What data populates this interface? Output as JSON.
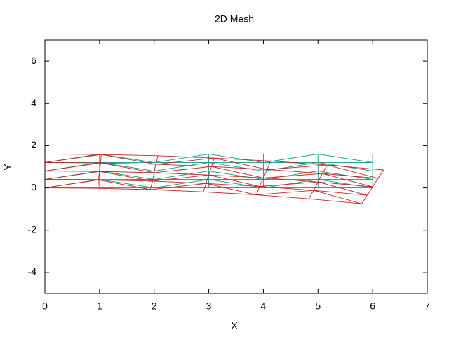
{
  "chart_data": {
    "type": "line",
    "title": "2D Mesh",
    "xlabel": "X",
    "ylabel": "Y",
    "xlim": [
      0,
      7
    ],
    "ylim": [
      -5,
      7
    ],
    "xticks": [
      0,
      1,
      2,
      3,
      4,
      5,
      6,
      7
    ],
    "yticks": [
      -4,
      -2,
      0,
      2,
      4,
      6
    ],
    "series": [
      {
        "color": "#009e88",
        "x": [
          0,
          1,
          2,
          3,
          4,
          5,
          6,
          null,
          0,
          1,
          2,
          3,
          4,
          5,
          6,
          null,
          0,
          1,
          2,
          3,
          4,
          5,
          6,
          null,
          0,
          1,
          2,
          3,
          4,
          5,
          6,
          null,
          0,
          1,
          2,
          3,
          4,
          5,
          6,
          null,
          0,
          0,
          0,
          0,
          0,
          null,
          1,
          1,
          1,
          1,
          1,
          null,
          2,
          2,
          2,
          2,
          2,
          null,
          3,
          3,
          3,
          3,
          3,
          null,
          4,
          4,
          4,
          4,
          4,
          null,
          5,
          5,
          5,
          5,
          5,
          null,
          6,
          6,
          6,
          6,
          6,
          null,
          0,
          1,
          2,
          3,
          4,
          5,
          6,
          null,
          0,
          1,
          2,
          3,
          4,
          5,
          6,
          null,
          0,
          1,
          2,
          3,
          4,
          5,
          6,
          null,
          0,
          1,
          2,
          3,
          4,
          5,
          6
        ],
        "y": [
          0,
          0,
          0,
          0,
          0,
          0,
          0,
          null,
          0.4,
          0.4,
          0.4,
          0.4,
          0.4,
          0.4,
          0.4,
          null,
          0.8,
          0.8,
          0.8,
          0.8,
          0.8,
          0.8,
          0.8,
          null,
          1.2,
          1.2,
          1.2,
          1.2,
          1.2,
          1.2,
          1.2,
          null,
          1.6,
          1.6,
          1.6,
          1.6,
          1.6,
          1.6,
          1.6,
          null,
          0,
          0.4,
          0.8,
          1.2,
          1.6,
          null,
          0,
          0.4,
          0.8,
          1.2,
          1.6,
          null,
          0,
          0.4,
          0.8,
          1.2,
          1.6,
          null,
          0,
          0.4,
          0.8,
          1.2,
          1.6,
          null,
          0,
          0.4,
          0.8,
          1.2,
          1.6,
          null,
          0,
          0.4,
          0.8,
          1.2,
          1.6,
          null,
          0,
          0.4,
          0.8,
          1.2,
          1.6,
          null,
          0,
          0.4,
          0,
          0.4,
          0,
          0.4,
          0,
          null,
          0.4,
          0.8,
          0.4,
          0.8,
          0.4,
          0.8,
          0.4,
          null,
          0.8,
          1.2,
          0.8,
          1.2,
          0.8,
          1.2,
          0.8,
          null,
          1.2,
          1.6,
          1.2,
          1.6,
          1.2,
          1.6,
          1.2
        ]
      },
      {
        "color": "#d01e1e",
        "x": [
          0,
          0.97,
          1.93,
          2.9,
          3.87,
          4.83,
          5.8,
          null,
          0,
          0.98,
          1.97,
          2.95,
          3.93,
          4.92,
          5.9,
          null,
          0,
          1,
          2,
          3,
          4,
          5,
          6,
          null,
          0,
          1.02,
          2.03,
          3.05,
          4.07,
          5.08,
          6.1,
          null,
          0,
          1.03,
          2.07,
          3.1,
          4.13,
          5.17,
          6.2,
          null,
          0,
          0,
          0,
          0,
          0,
          null,
          0.97,
          0.98,
          1,
          1.02,
          1.03,
          null,
          1.93,
          1.97,
          2,
          2.03,
          2.07,
          null,
          2.9,
          2.95,
          3,
          3.05,
          3.1,
          null,
          3.87,
          3.93,
          4,
          4.07,
          4.13,
          null,
          4.83,
          4.92,
          5,
          5.08,
          5.17,
          null,
          5.8,
          5.9,
          6,
          6.1,
          6.2,
          null,
          0,
          0.98,
          1.93,
          2.95,
          3.87,
          4.92,
          5.8,
          null,
          0,
          1,
          1.97,
          3,
          3.93,
          5,
          5.9,
          null,
          0,
          1.02,
          2,
          3.05,
          4,
          5.08,
          6,
          null,
          0,
          1.03,
          2.03,
          3.1,
          4.07,
          5.17,
          6.1
        ],
        "y": [
          0,
          -0.02,
          -0.08,
          -0.19,
          -0.33,
          -0.52,
          -0.75,
          null,
          0.4,
          0.38,
          0.32,
          0.21,
          0.07,
          -0.12,
          -0.35,
          null,
          0.8,
          0.78,
          0.72,
          0.61,
          0.47,
          0.28,
          0.05,
          null,
          1.2,
          1.18,
          1.12,
          1.01,
          0.87,
          0.68,
          0.45,
          null,
          1.6,
          1.58,
          1.52,
          1.41,
          1.27,
          1.08,
          0.85,
          null,
          0,
          0.4,
          0.8,
          1.2,
          1.6,
          null,
          -0.02,
          0.38,
          0.78,
          1.18,
          1.58,
          null,
          -0.08,
          0.32,
          0.72,
          1.12,
          1.52,
          null,
          -0.19,
          0.21,
          0.61,
          1.01,
          1.41,
          null,
          -0.33,
          0.07,
          0.47,
          0.87,
          1.27,
          null,
          -0.52,
          -0.12,
          0.28,
          0.68,
          1.08,
          null,
          -0.75,
          -0.35,
          0.05,
          0.45,
          0.85,
          null,
          0,
          0.38,
          -0.08,
          0.21,
          -0.33,
          -0.12,
          -0.75,
          null,
          0.4,
          0.78,
          0.32,
          0.61,
          0.07,
          0.28,
          -0.35,
          null,
          0.8,
          1.18,
          0.72,
          1.01,
          0.47,
          0.68,
          0.05,
          null,
          1.2,
          1.58,
          1.12,
          1.41,
          0.87,
          1.08,
          0.45
        ]
      }
    ]
  }
}
